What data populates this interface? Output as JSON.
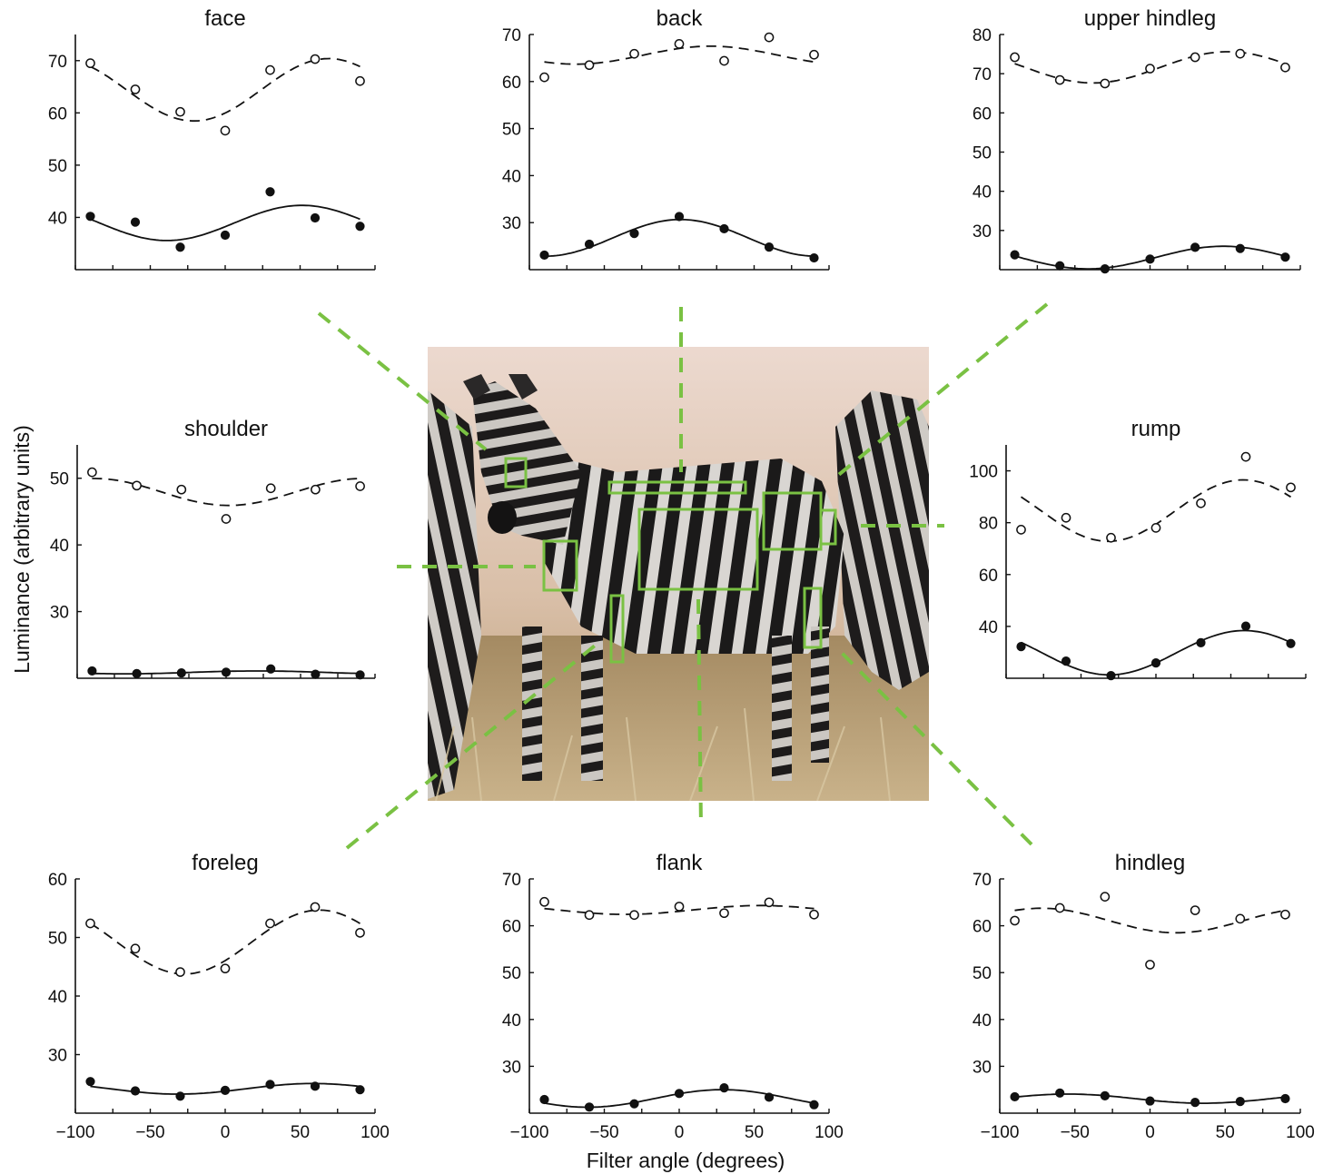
{
  "xlabel": "Filter angle (degrees)",
  "ylabel": "Luminance (arbitrary units)",
  "colors": {
    "highlight": "#7ac143",
    "ink": "#111111"
  },
  "photo": {
    "subject": "zebra"
  },
  "chart_data": [
    {
      "type": "scatter",
      "title": "face",
      "x": [
        -90,
        -60,
        -30,
        0,
        30,
        60,
        90
      ],
      "xlim": [
        -100,
        100
      ],
      "ylim": [
        30,
        75
      ],
      "yticks": [
        40,
        50,
        60,
        70
      ],
      "series": [
        {
          "marker": "open",
          "line": "dashed",
          "values": [
            69.5,
            64.5,
            60.2,
            56.6,
            68.2,
            70.3,
            66.1
          ]
        },
        {
          "marker": "filled",
          "line": "solid",
          "values": [
            40.2,
            39.1,
            34.3,
            36.6,
            44.9,
            39.9,
            38.3
          ]
        }
      ]
    },
    {
      "type": "scatter",
      "title": "back",
      "x": [
        -90,
        -60,
        -30,
        0,
        30,
        60,
        90
      ],
      "xlim": [
        -100,
        100
      ],
      "ylim": [
        20,
        70
      ],
      "yticks": [
        30,
        40,
        50,
        60,
        70
      ],
      "series": [
        {
          "marker": "open",
          "line": "dashed",
          "values": [
            60.9,
            63.5,
            65.9,
            68.0,
            64.4,
            69.4,
            65.7
          ]
        },
        {
          "marker": "filled",
          "line": "solid",
          "values": [
            23.1,
            25.4,
            27.7,
            31.3,
            28.7,
            24.8,
            22.5
          ]
        }
      ]
    },
    {
      "type": "scatter",
      "title": "upper hindleg",
      "x": [
        -90,
        -60,
        -30,
        0,
        30,
        60,
        90
      ],
      "xlim": [
        -100,
        100
      ],
      "ylim": [
        20,
        80
      ],
      "yticks": [
        30,
        40,
        50,
        60,
        70,
        80
      ],
      "series": [
        {
          "marker": "open",
          "line": "dashed",
          "values": [
            74.2,
            68.4,
            67.5,
            71.3,
            74.2,
            75.1,
            71.6
          ]
        },
        {
          "marker": "filled",
          "line": "solid",
          "values": [
            23.8,
            21.0,
            20.2,
            22.7,
            25.7,
            25.4,
            23.2
          ]
        }
      ]
    },
    {
      "type": "scatter",
      "title": "shoulder",
      "x": [
        -90,
        -60,
        -30,
        0,
        30,
        60,
        90
      ],
      "xlim": [
        -100,
        100
      ],
      "ylim": [
        20,
        55
      ],
      "yticks": [
        30,
        40,
        50
      ],
      "series": [
        {
          "marker": "open",
          "line": "dashed",
          "values": [
            50.9,
            48.9,
            48.3,
            43.9,
            48.5,
            48.3,
            48.8
          ]
        },
        {
          "marker": "filled",
          "line": "solid",
          "values": [
            21.1,
            20.7,
            20.8,
            20.9,
            21.4,
            20.6,
            20.5
          ]
        }
      ]
    },
    {
      "type": "scatter",
      "title": "rump",
      "x": [
        -90,
        -60,
        -30,
        0,
        30,
        60,
        90
      ],
      "xlim": [
        -100,
        100
      ],
      "ylim": [
        20,
        110
      ],
      "yticks": [
        40,
        60,
        80,
        100
      ],
      "series": [
        {
          "marker": "open",
          "line": "dashed",
          "values": [
            77.3,
            81.9,
            74.2,
            78.0,
            87.5,
            105.4,
            93.6
          ]
        },
        {
          "marker": "filled",
          "line": "solid",
          "values": [
            32.2,
            26.6,
            21.0,
            25.9,
            33.7,
            40.1,
            33.4
          ]
        }
      ]
    },
    {
      "type": "scatter",
      "title": "foreleg",
      "x": [
        -90,
        -60,
        -30,
        0,
        30,
        60,
        90
      ],
      "xlim": [
        -100,
        100
      ],
      "ylim": [
        20,
        60
      ],
      "yticks": [
        30,
        40,
        50,
        60
      ],
      "series": [
        {
          "marker": "open",
          "line": "dashed",
          "values": [
            52.4,
            48.1,
            44.1,
            44.7,
            52.4,
            55.2,
            50.8
          ]
        },
        {
          "marker": "filled",
          "line": "solid",
          "values": [
            25.4,
            23.8,
            22.9,
            23.9,
            24.9,
            24.6,
            24.0
          ]
        }
      ]
    },
    {
      "type": "scatter",
      "title": "flank",
      "x": [
        -90,
        -60,
        -30,
        0,
        30,
        60,
        90
      ],
      "xlim": [
        -100,
        100
      ],
      "ylim": [
        20,
        70
      ],
      "yticks": [
        30,
        40,
        50,
        60,
        70
      ],
      "series": [
        {
          "marker": "open",
          "line": "dashed",
          "values": [
            65.1,
            62.3,
            62.3,
            64.1,
            62.7,
            65.0,
            62.4
          ]
        },
        {
          "marker": "filled",
          "line": "solid",
          "values": [
            22.9,
            21.3,
            22.0,
            24.2,
            25.4,
            23.4,
            21.8
          ]
        }
      ]
    },
    {
      "type": "scatter",
      "title": "hindleg",
      "x": [
        -90,
        -60,
        -30,
        0,
        30,
        60,
        90
      ],
      "xlim": [
        -100,
        100
      ],
      "ylim": [
        20,
        70
      ],
      "yticks": [
        30,
        40,
        50,
        60,
        70
      ],
      "series": [
        {
          "marker": "open",
          "line": "dashed",
          "values": [
            61.1,
            63.8,
            66.2,
            51.7,
            63.3,
            61.5,
            62.4
          ]
        },
        {
          "marker": "filled",
          "line": "solid",
          "values": [
            23.5,
            24.3,
            23.7,
            22.6,
            22.3,
            22.5,
            23.1
          ]
        }
      ]
    }
  ]
}
